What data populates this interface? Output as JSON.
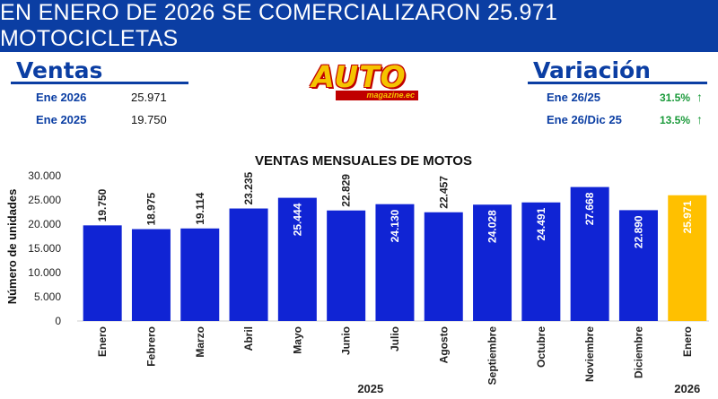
{
  "header": {
    "title": "EN ENERO DE 2026 SE COMERCIALIZARON 25.971 MOTOCICLETAS"
  },
  "ventas": {
    "title": "Ventas",
    "rows": [
      {
        "label": "Ene 2026",
        "value": "25.971"
      },
      {
        "label": "Ene 2025",
        "value": "19.750"
      }
    ]
  },
  "logo": {
    "word": "AUTO",
    "sub": "magazine.ec"
  },
  "variacion": {
    "title": "Variación",
    "rows": [
      {
        "label": "Ene 26/25",
        "value": "31.5%",
        "arrow": "↑"
      },
      {
        "label": "Ene 26/Dic 25",
        "value": "13.5%",
        "arrow": "↑"
      }
    ]
  },
  "colors": {
    "banner": "#0b3ea3",
    "bar_2025": "#1024d4",
    "bar_2026": "#ffc000",
    "positive": "#1a9a3a"
  },
  "chart_data": {
    "type": "bar",
    "title": "VENTAS MENSUALES DE MOTOS",
    "ylabel": "Número de unidades",
    "ylim": [
      0,
      30000
    ],
    "yticks": [
      "0",
      "5.000",
      "10.000",
      "15.000",
      "20.000",
      "25.000",
      "30.000"
    ],
    "categories": [
      "Enero",
      "Febrero",
      "Marzo",
      "Abril",
      "Mayo",
      "Junio",
      "Julio",
      "Agosto",
      "Septiembre",
      "Octubre",
      "Noviembre",
      "Diciembre",
      "Enero"
    ],
    "values": [
      19750,
      18975,
      19114,
      23235,
      25444,
      22829,
      24130,
      22457,
      24028,
      24491,
      27668,
      22890,
      25971
    ],
    "value_labels": [
      "19.750",
      "18.975",
      "19.114",
      "23.235",
      "25.444",
      "22.829",
      "24.130",
      "22.457",
      "24.028",
      "24.491",
      "27.668",
      "22.890",
      "25.971"
    ],
    "groups": [
      {
        "name": "2025",
        "count": 12
      },
      {
        "name": "2026",
        "count": 1
      }
    ],
    "grid": false,
    "legend": "none"
  }
}
